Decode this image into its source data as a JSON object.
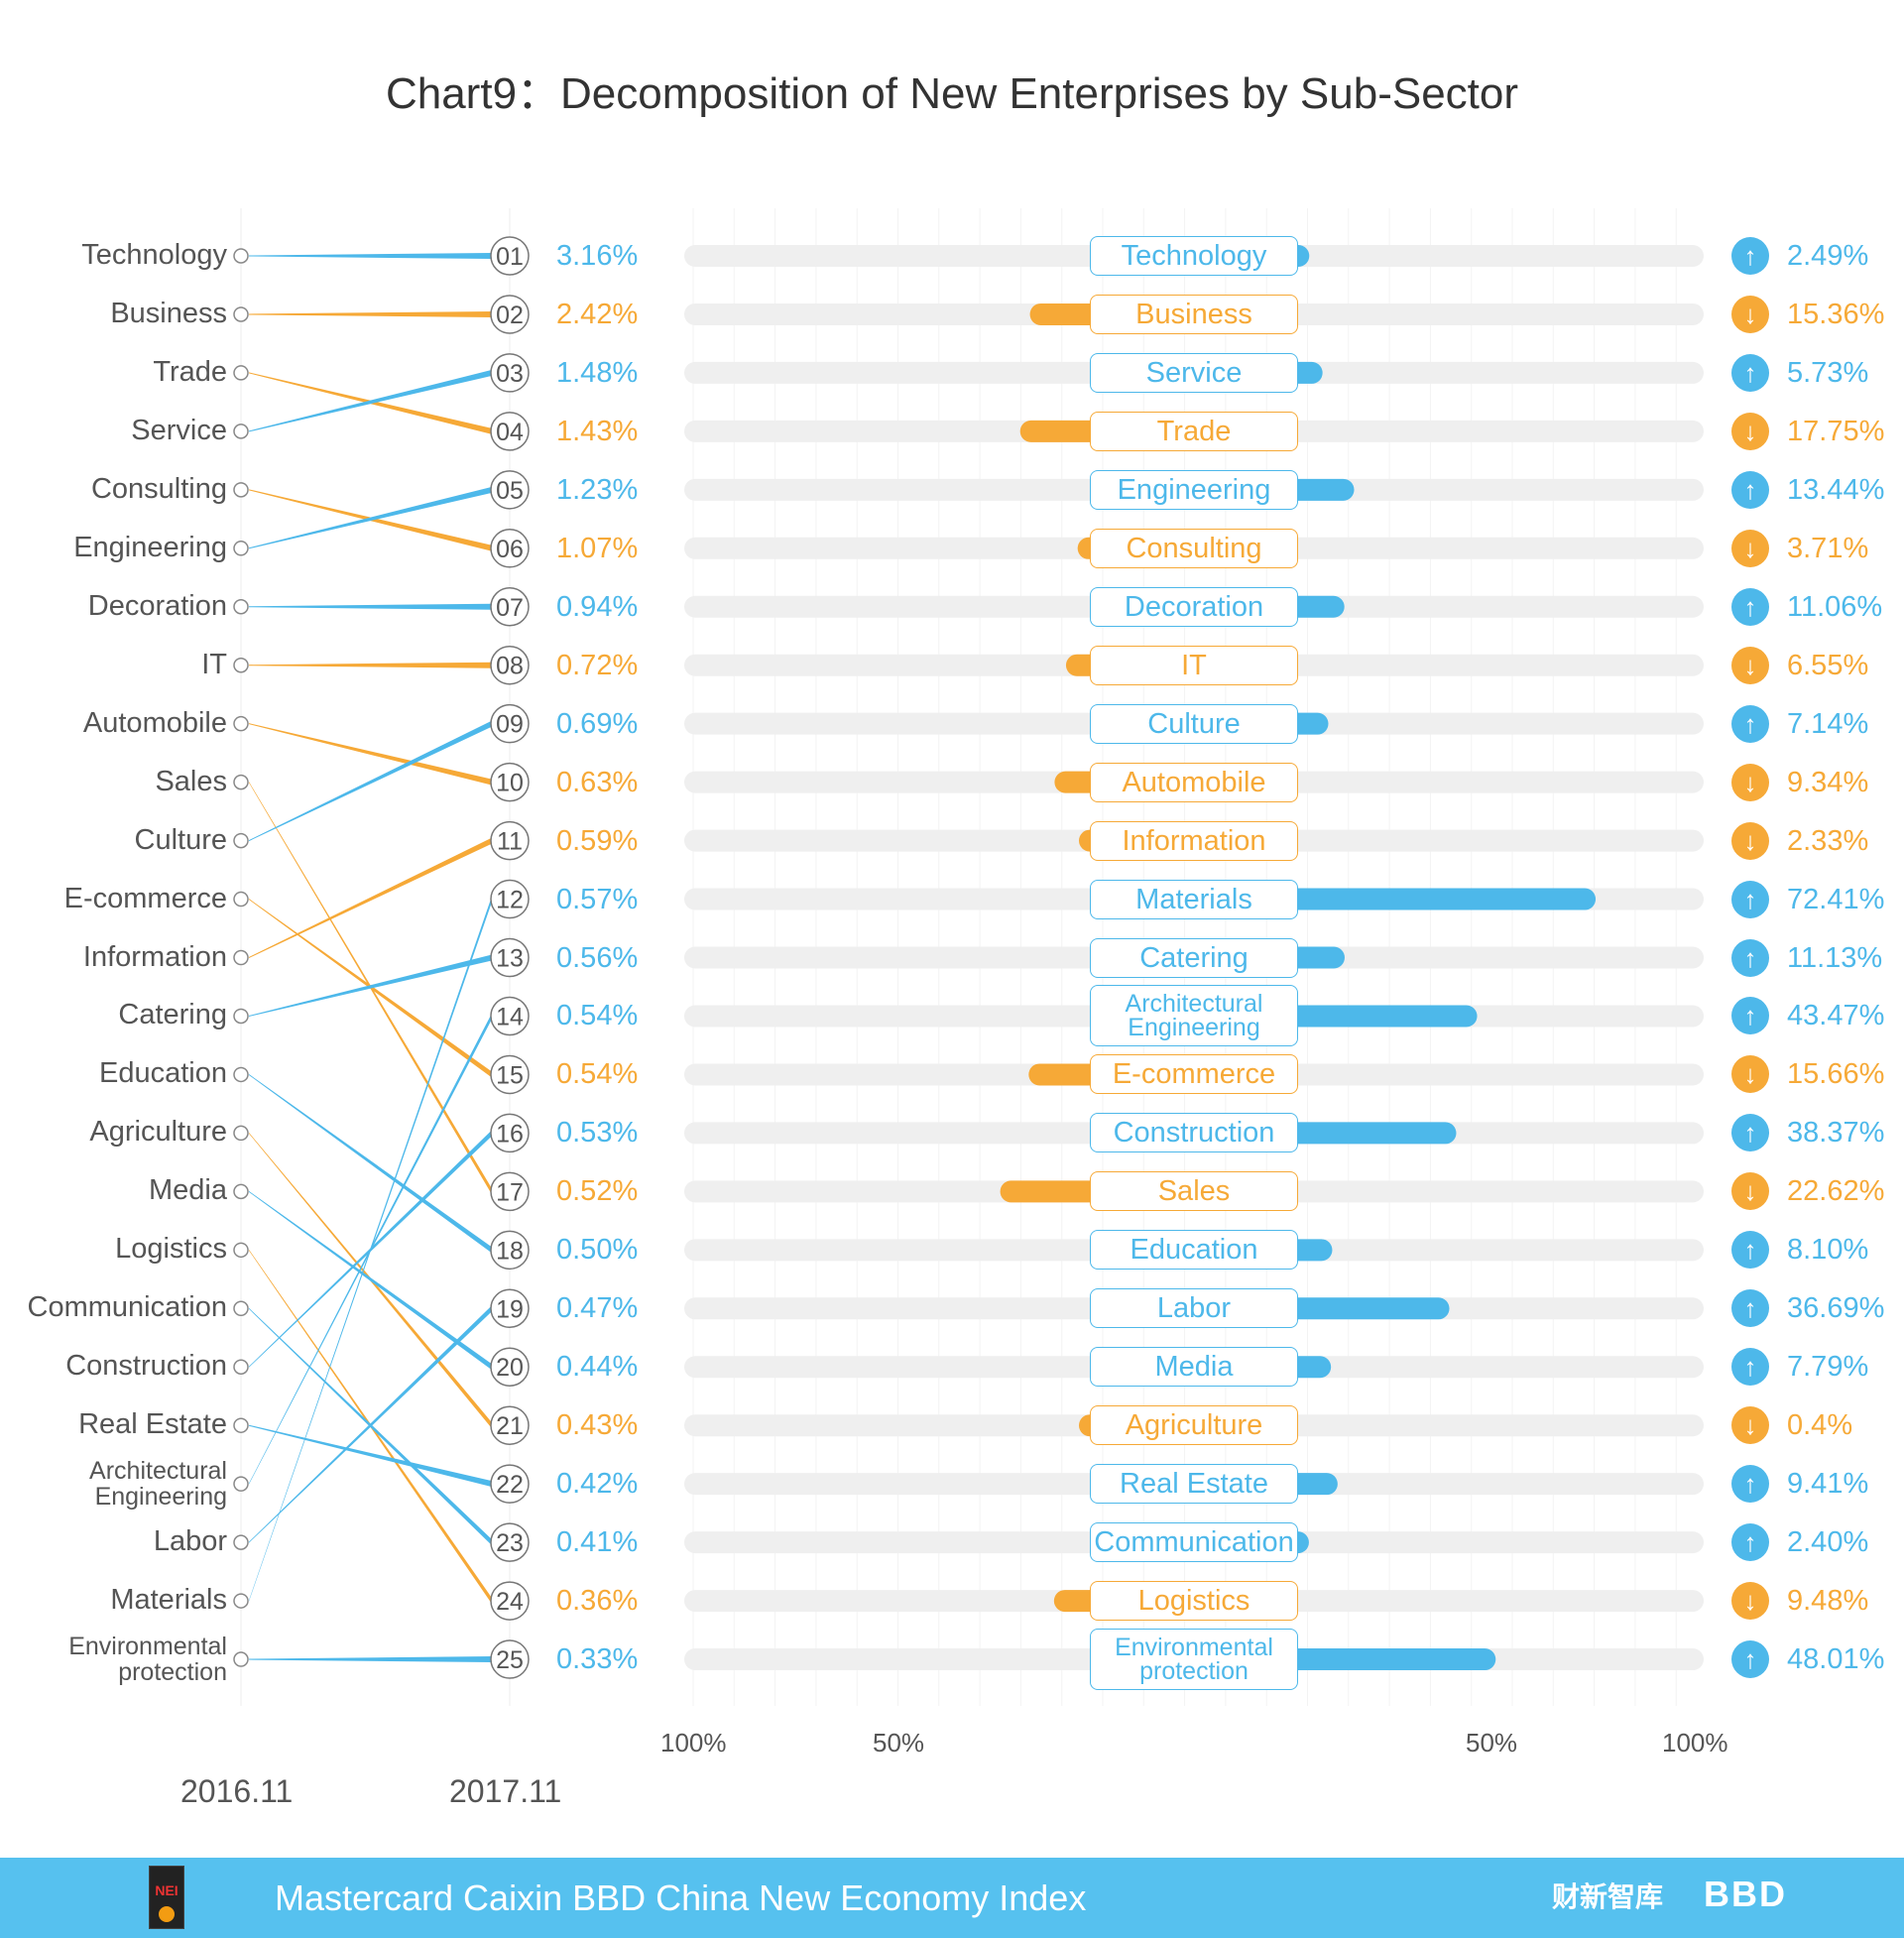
{
  "chart_data": {
    "type": "slope-and-diverging-bar",
    "title": "Chart9：Decomposition of New Enterprises by Sub-Sector",
    "years": [
      "2016.11",
      "2017.11"
    ],
    "axis_ticks_left": [
      "100%",
      "50%"
    ],
    "axis_ticks_right": [
      "50%",
      "100%"
    ],
    "xlim": [
      -100,
      100
    ],
    "colors": {
      "up": "#4db8ea",
      "down": "#f6a937",
      "track": "#efefef"
    },
    "rank_2016": [
      "Technology",
      "Business",
      "Trade",
      "Service",
      "Consulting",
      "Engineering",
      "Decoration",
      "IT",
      "Automobile",
      "Sales",
      "Culture",
      "E-commerce",
      "Information",
      "Catering",
      "Education",
      "Agriculture",
      "Media",
      "Logistics",
      "Communication",
      "Construction",
      "Real Estate",
      "Architectural Engineering",
      "Labor",
      "Materials",
      "Environmental protection"
    ],
    "rows": [
      {
        "rank": "01",
        "name": "Technology",
        "share": "3.16%",
        "change": 2.49,
        "change_label": "2.49%",
        "direction": "up"
      },
      {
        "rank": "02",
        "name": "Business",
        "share": "2.42%",
        "change": -15.36,
        "change_label": "15.36%",
        "direction": "down"
      },
      {
        "rank": "03",
        "name": "Service",
        "share": "1.48%",
        "change": 5.73,
        "change_label": "5.73%",
        "direction": "up"
      },
      {
        "rank": "04",
        "name": "Trade",
        "share": "1.43%",
        "change": -17.75,
        "change_label": "17.75%",
        "direction": "down"
      },
      {
        "rank": "05",
        "name": "Engineering",
        "share": "1.23%",
        "change": 13.44,
        "change_label": "13.44%",
        "direction": "up"
      },
      {
        "rank": "06",
        "name": "Consulting",
        "share": "1.07%",
        "change": -3.71,
        "change_label": "3.71%",
        "direction": "down"
      },
      {
        "rank": "07",
        "name": "Decoration",
        "share": "0.94%",
        "change": 11.06,
        "change_label": "11.06%",
        "direction": "up"
      },
      {
        "rank": "08",
        "name": "IT",
        "share": "0.72%",
        "change": -6.55,
        "change_label": "6.55%",
        "direction": "down"
      },
      {
        "rank": "09",
        "name": "Culture",
        "share": "0.69%",
        "change": 7.14,
        "change_label": "7.14%",
        "direction": "up"
      },
      {
        "rank": "10",
        "name": "Automobile",
        "share": "0.63%",
        "change": -9.34,
        "change_label": "9.34%",
        "direction": "down"
      },
      {
        "rank": "11",
        "name": "Information",
        "share": "0.59%",
        "change": -2.33,
        "change_label": "2.33%",
        "direction": "down"
      },
      {
        "rank": "12",
        "name": "Materials",
        "share": "0.57%",
        "change": 72.41,
        "change_label": "72.41%",
        "direction": "up"
      },
      {
        "rank": "13",
        "name": "Catering",
        "share": "0.56%",
        "change": 11.13,
        "change_label": "11.13%",
        "direction": "up"
      },
      {
        "rank": "14",
        "name": "Architectural Engineering",
        "share": "0.54%",
        "change": 43.47,
        "change_label": "43.47%",
        "direction": "up"
      },
      {
        "rank": "15",
        "name": "E-commerce",
        "share": "0.54%",
        "change": -15.66,
        "change_label": "15.66%",
        "direction": "down"
      },
      {
        "rank": "16",
        "name": "Construction",
        "share": "0.53%",
        "change": 38.37,
        "change_label": "38.37%",
        "direction": "up"
      },
      {
        "rank": "17",
        "name": "Sales",
        "share": "0.52%",
        "change": -22.62,
        "change_label": "22.62%",
        "direction": "down"
      },
      {
        "rank": "18",
        "name": "Education",
        "share": "0.50%",
        "change": 8.1,
        "change_label": "8.10%",
        "direction": "up"
      },
      {
        "rank": "19",
        "name": "Labor",
        "share": "0.47%",
        "change": 36.69,
        "change_label": "36.69%",
        "direction": "up"
      },
      {
        "rank": "20",
        "name": "Media",
        "share": "0.44%",
        "change": 7.79,
        "change_label": "7.79%",
        "direction": "up"
      },
      {
        "rank": "21",
        "name": "Agriculture",
        "share": "0.43%",
        "change": -0.4,
        "change_label": "0.4%",
        "direction": "down"
      },
      {
        "rank": "22",
        "name": "Real Estate",
        "share": "0.42%",
        "change": 9.41,
        "change_label": "9.41%",
        "direction": "up"
      },
      {
        "rank": "23",
        "name": "Communication",
        "share": "0.41%",
        "change": 2.4,
        "change_label": "2.40%",
        "direction": "up"
      },
      {
        "rank": "24",
        "name": "Logistics",
        "share": "0.36%",
        "change": -9.48,
        "change_label": "9.48%",
        "direction": "down"
      },
      {
        "rank": "25",
        "name": "Environmental protection",
        "share": "0.33%",
        "change": 48.01,
        "change_label": "48.01%",
        "direction": "up"
      }
    ]
  },
  "footer": {
    "title": "Mastercard Caixin BBD China New Economy Index",
    "logo_text": "NEI",
    "brand_cn": "财新智库",
    "brand_bbd": "BBD"
  }
}
